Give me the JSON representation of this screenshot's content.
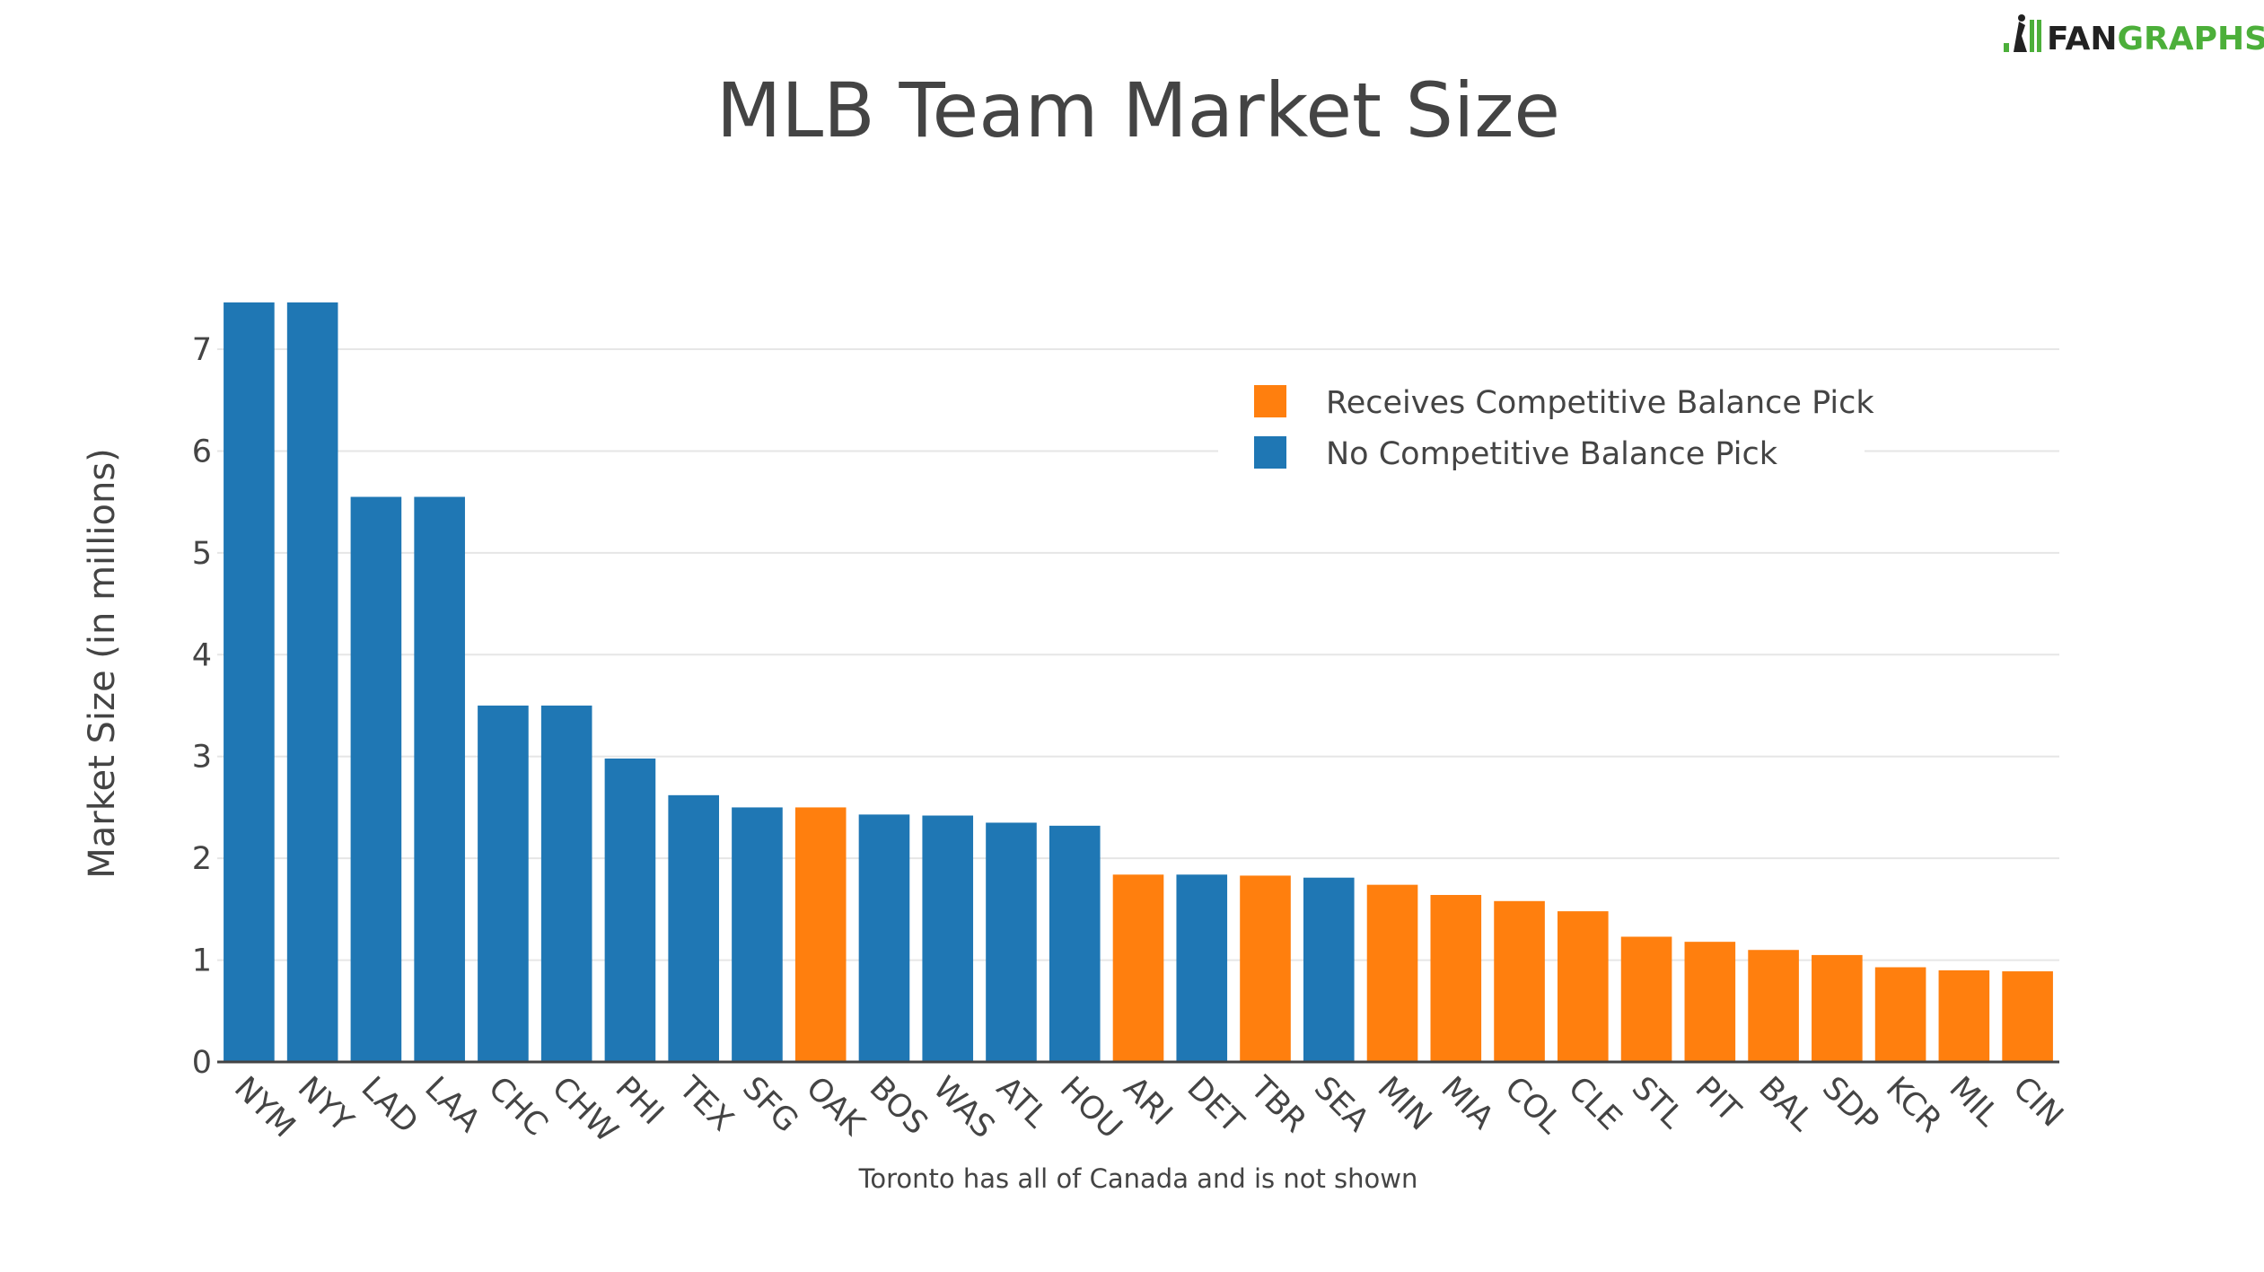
{
  "logo": {
    "part1": "FAN",
    "part2": "GRAPHS",
    "colors": {
      "dark": "#222222",
      "green": "#4caf3a"
    }
  },
  "chart_data": {
    "type": "bar",
    "title": "MLB Team Market Size",
    "xlabel": "",
    "ylabel": "Market Size (in millions)",
    "note": "Toronto has all of Canada and is not shown",
    "ylim": [
      0,
      7.45
    ],
    "yticks": [
      0,
      1,
      2,
      3,
      4,
      5,
      6,
      7
    ],
    "grid": true,
    "legend_position": "top-right",
    "legend": [
      {
        "key": "receives",
        "label": "Receives Competitive Balance Pick",
        "color": "#ff7f0e"
      },
      {
        "key": "none",
        "label": "No Competitive Balance Pick",
        "color": "#1f77b4"
      }
    ],
    "categories": [
      "NYM",
      "NYY",
      "LAD",
      "LAA",
      "CHC",
      "CHW",
      "PHI",
      "TEX",
      "SFG",
      "OAK",
      "BOS",
      "WAS",
      "ATL",
      "HOU",
      "ARI",
      "DET",
      "TBR",
      "SEA",
      "MIN",
      "MIA",
      "COL",
      "CLE",
      "STL",
      "PIT",
      "BAL",
      "SDP",
      "KCR",
      "MIL",
      "CIN"
    ],
    "values": [
      7.46,
      7.46,
      5.55,
      5.55,
      3.5,
      3.5,
      2.98,
      2.62,
      2.5,
      2.5,
      2.43,
      2.42,
      2.35,
      2.32,
      1.84,
      1.84,
      1.83,
      1.81,
      1.74,
      1.64,
      1.58,
      1.48,
      1.23,
      1.18,
      1.1,
      1.05,
      0.93,
      0.9,
      0.89
    ],
    "groups": [
      "none",
      "none",
      "none",
      "none",
      "none",
      "none",
      "none",
      "none",
      "none",
      "receives",
      "none",
      "none",
      "none",
      "none",
      "receives",
      "none",
      "receives",
      "none",
      "receives",
      "receives",
      "receives",
      "receives",
      "receives",
      "receives",
      "receives",
      "receives",
      "receives",
      "receives",
      "receives"
    ]
  }
}
